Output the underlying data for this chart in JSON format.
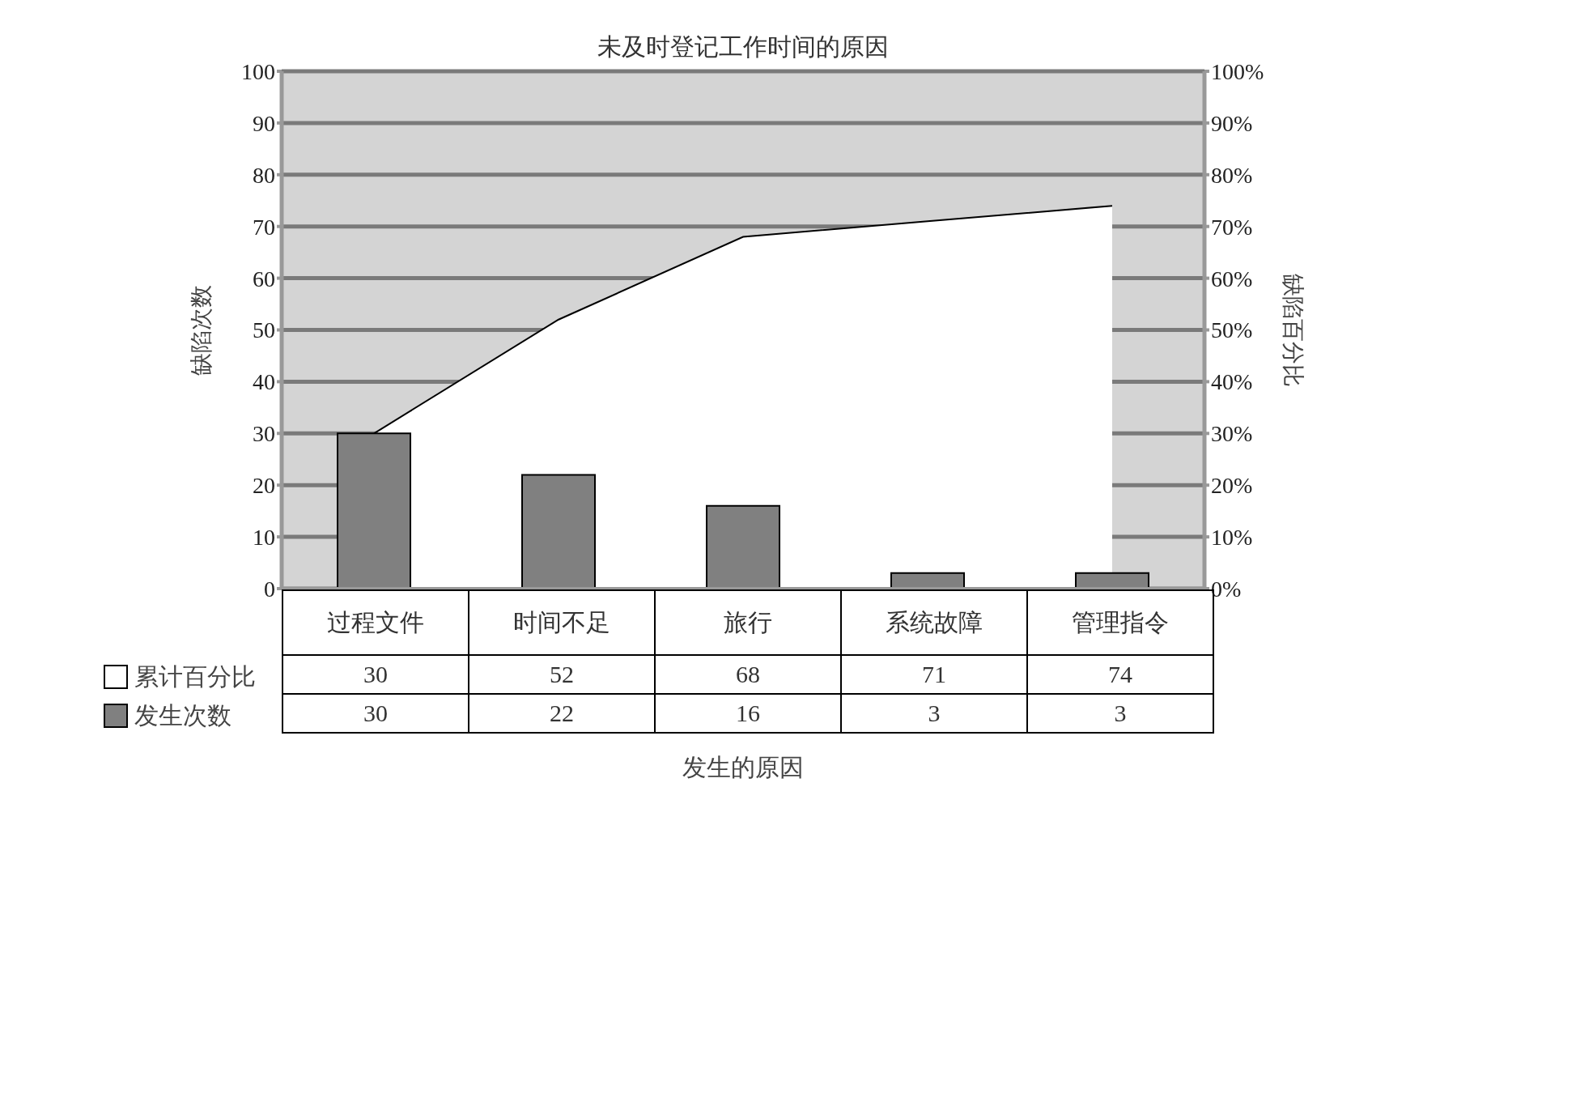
{
  "chart_data": {
    "type": "bar",
    "title": "未及时登记工作时间的原因",
    "xlabel": "发生的原因",
    "ylabel": "缺陷次数",
    "y2label": "缺陷百分比",
    "categories": [
      "过程文件",
      "时间不足",
      "旅行",
      "系统故障",
      "管理指令"
    ],
    "series": [
      {
        "name": "累计百分比",
        "type": "area",
        "color": "#ffffff",
        "values": [
          30,
          52,
          68,
          71,
          74
        ]
      },
      {
        "name": "发生次数",
        "type": "bar",
        "color": "#808080",
        "values": [
          30,
          22,
          16,
          3,
          3
        ]
      }
    ],
    "ylim": [
      0,
      100
    ],
    "yticks": [
      0,
      10,
      20,
      30,
      40,
      50,
      60,
      70,
      80,
      90,
      100
    ],
    "y2lim": [
      0,
      100
    ],
    "y2ticks": [
      {
        "value": 0,
        "label": "0%"
      },
      {
        "value": 10,
        "label": "10%"
      },
      {
        "value": 20,
        "label": "20%"
      },
      {
        "value": 30,
        "label": "30%"
      },
      {
        "value": 40,
        "label": "40%"
      },
      {
        "value": 50,
        "label": "50%"
      },
      {
        "value": 60,
        "label": "60%"
      },
      {
        "value": 70,
        "label": "70%"
      },
      {
        "value": 80,
        "label": "80%"
      },
      {
        "value": 90,
        "label": "90%"
      },
      {
        "value": 100,
        "label": "100%"
      }
    ],
    "grid": "y",
    "legend": "bottom left",
    "data_labels": true
  }
}
